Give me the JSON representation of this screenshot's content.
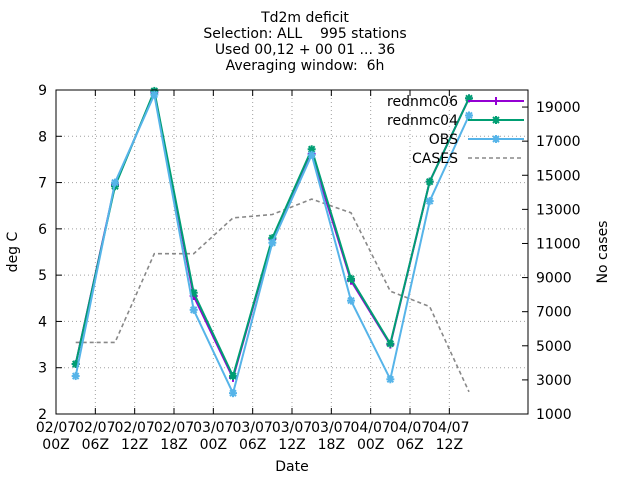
{
  "chart_data": {
    "type": "line",
    "title_lines": [
      "Td2m deficit",
      "Selection: ALL    995 stations",
      "Used 00,12 + 00 01 ... 36",
      "Averaging window:  6h"
    ],
    "xlabel": "Date",
    "ylabel": "deg C",
    "y2label": "No cases",
    "x_range": [
      0,
      72
    ],
    "ylim": [
      2,
      9
    ],
    "y2lim": [
      1000,
      20000
    ],
    "x_ticks": [
      {
        "x": 0,
        "l1": "02/07",
        "l2": "00Z"
      },
      {
        "x": 6,
        "l1": "02/07",
        "l2": "06Z"
      },
      {
        "x": 12,
        "l1": "02/07",
        "l2": "12Z"
      },
      {
        "x": 18,
        "l1": "02/07",
        "l2": "18Z"
      },
      {
        "x": 24,
        "l1": "03/07",
        "l2": "00Z"
      },
      {
        "x": 30,
        "l1": "03/07",
        "l2": "06Z"
      },
      {
        "x": 36,
        "l1": "03/07",
        "l2": "12Z"
      },
      {
        "x": 42,
        "l1": "03/07",
        "l2": "18Z"
      },
      {
        "x": 48,
        "l1": "04/07",
        "l2": "00Z"
      },
      {
        "x": 54,
        "l1": "04/07",
        "l2": "06Z"
      },
      {
        "x": 60,
        "l1": "04/07",
        "l2": "12Z"
      }
    ],
    "y_ticks": [
      2,
      3,
      4,
      5,
      6,
      7,
      8,
      9
    ],
    "y2_ticks": [
      1000,
      3000,
      5000,
      7000,
      9000,
      11000,
      13000,
      15000,
      17000,
      19000
    ],
    "grid": true,
    "legend_position": "top-right",
    "series": [
      {
        "name": "rednmc06",
        "color": "#9400d3",
        "axis": "y",
        "marker": "plus",
        "x": [
          3,
          9,
          15,
          21,
          27,
          33,
          39,
          45,
          51,
          57,
          63
        ],
        "values": [
          3.08,
          6.95,
          8.95,
          4.55,
          2.78,
          5.78,
          7.62,
          4.88,
          3.5,
          7.02,
          8.82
        ]
      },
      {
        "name": "rednmc04",
        "color": "#009e73",
        "axis": "y",
        "marker": "star",
        "x": [
          3,
          9,
          15,
          21,
          27,
          33,
          39,
          45,
          51,
          57,
          63
        ],
        "values": [
          3.08,
          6.92,
          8.98,
          4.62,
          2.82,
          5.8,
          7.72,
          4.92,
          3.52,
          7.02,
          8.82
        ]
      },
      {
        "name": "OBS",
        "color": "#56b4e9",
        "axis": "y",
        "marker": "asterisk",
        "x": [
          3,
          9,
          15,
          21,
          27,
          33,
          39,
          45,
          51,
          57,
          63
        ],
        "values": [
          2.82,
          7.0,
          8.9,
          4.25,
          2.45,
          5.7,
          7.6,
          4.45,
          2.75,
          6.6,
          8.45
        ]
      },
      {
        "name": "CASES",
        "color": "#888888",
        "axis": "y2",
        "dashed": true,
        "x": [
          3,
          9,
          15,
          21,
          27,
          33,
          39,
          45,
          51,
          57,
          63
        ],
        "values": [
          5200,
          5200,
          10400,
          10400,
          12500,
          12700,
          13600,
          12800,
          8200,
          7300,
          2300
        ]
      }
    ]
  }
}
